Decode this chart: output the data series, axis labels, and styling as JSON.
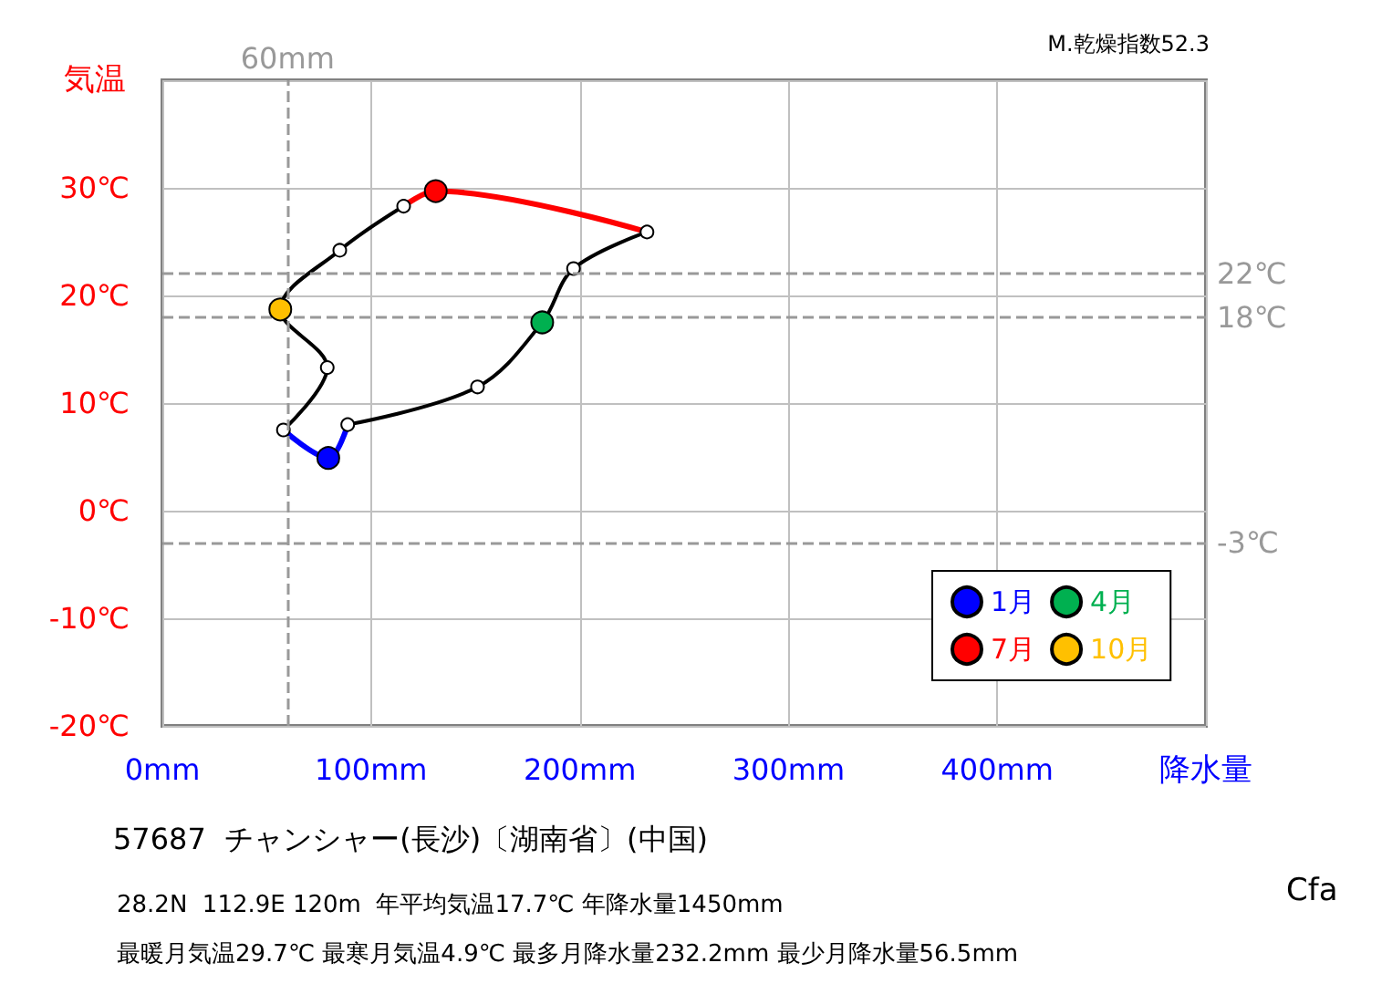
{
  "chart_data": {
    "type": "line",
    "xlabel": "降水量",
    "ylabel": "気温",
    "xlim": [
      0,
      500
    ],
    "xticks": [
      {
        "value": 0,
        "label": "0mm"
      },
      {
        "value": 100,
        "label": "100mm"
      },
      {
        "value": 200,
        "label": "200mm"
      },
      {
        "value": 300,
        "label": "300mm"
      },
      {
        "value": 400,
        "label": "400mm"
      },
      {
        "value": 500,
        "label": null
      }
    ],
    "ylim": [
      -20,
      40
    ],
    "yticks": [
      {
        "value": -20,
        "label": "-20℃"
      },
      {
        "value": -10,
        "label": "-10℃"
      },
      {
        "value": 0,
        "label": "0℃"
      },
      {
        "value": 10,
        "label": "10℃"
      },
      {
        "value": 20,
        "label": "20℃"
      },
      {
        "value": 30,
        "label": "30℃"
      },
      {
        "value": 40,
        "label": null
      }
    ],
    "grid": true,
    "legend": "bottom right",
    "marker": "circle",
    "series": [
      {
        "type": "line",
        "color": "#000000",
        "x": [
          88.8,
          151,
          182,
          197,
          232.2
        ],
        "values": [
          8.0,
          11.5,
          17.5,
          22.5,
          25.9
        ]
      },
      {
        "type": "line",
        "color": "#000000",
        "x": [
          115.6,
          85,
          56.5,
          79,
          58
        ],
        "values": [
          28.3,
          24.2,
          18.7,
          13.3,
          7.5
        ]
      },
      {
        "type": "line",
        "color": "#0000ff",
        "marker": "none",
        "x": [
          58,
          79.5,
          88.8
        ],
        "values": [
          7.5,
          4.9,
          8.0
        ]
      },
      {
        "type": "line",
        "color": "#ff0000",
        "marker": "none",
        "x": [
          232.2,
          131,
          115.6
        ],
        "values": [
          25.9,
          29.7,
          28.3
        ]
      },
      {
        "type": "scatter",
        "name": "1月",
        "color": "#0000ff",
        "x": [
          79.5
        ],
        "values": [
          4.9
        ]
      },
      {
        "type": "scatter",
        "name": "4月",
        "color": "#00b050",
        "x": [
          182
        ],
        "values": [
          17.5
        ]
      },
      {
        "type": "scatter",
        "name": "7月",
        "color": "#ff0000",
        "x": [
          131
        ],
        "values": [
          29.7
        ]
      },
      {
        "type": "scatter",
        "name": "10月",
        "color": "#ffc000",
        "x": [
          56.5
        ],
        "values": [
          18.7
        ]
      }
    ],
    "ref_lines": [
      {
        "axis": "y",
        "value": 22,
        "label": "22℃",
        "color": "#999999",
        "line_style": "dashed"
      },
      {
        "axis": "y",
        "value": 18,
        "label": "18℃",
        "color": "#999999",
        "line_style": "dashed"
      },
      {
        "axis": "y",
        "value": -3,
        "label": "-3℃",
        "color": "#999999",
        "line_style": "dashed"
      },
      {
        "axis": "x",
        "value": 60,
        "label": "60mm",
        "color": "#999999",
        "line_style": "dashed"
      }
    ],
    "annotations": [
      "M.乾燥指数52.3",
      "57687  チャンシャー(長沙)〔湖南省〕(中国)",
      "28.2N  112.9E 120m  年平均気温17.7℃ 年降水量1450mm",
      "最暖月気温29.7℃ 最寒月気温4.9℃ 最多月降水量232.2mm 最少月降水量56.5mm",
      "Cfa"
    ]
  }
}
